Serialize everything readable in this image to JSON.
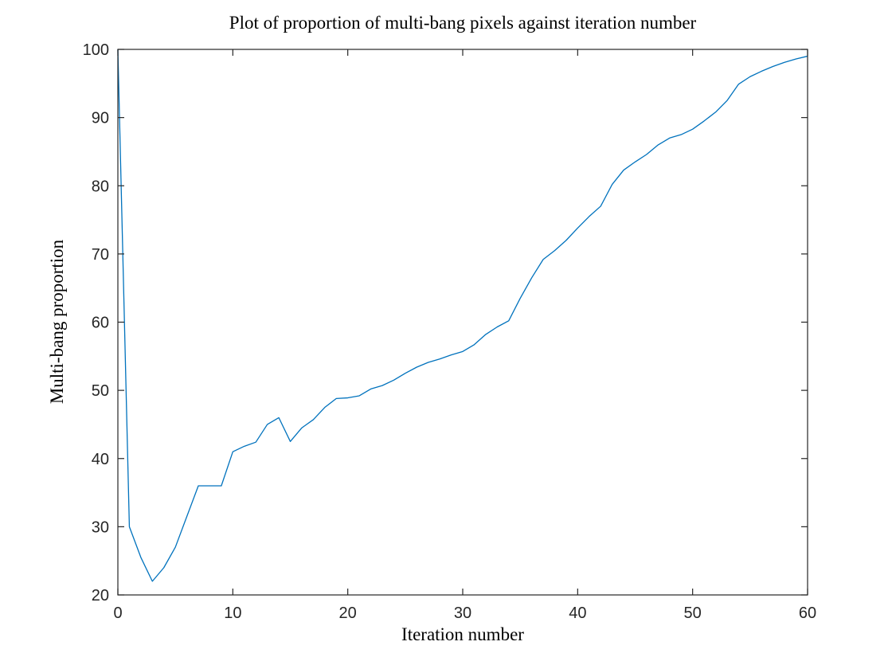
{
  "figure": {
    "background": "#ffffff"
  },
  "chart_data": {
    "type": "line",
    "title": "Plot of proportion of multi-bang pixels against iteration number",
    "xlabel": "Iteration number",
    "ylabel": "Multi-bang proportion",
    "xlim": [
      0,
      60
    ],
    "ylim": [
      20,
      100
    ],
    "xticks": [
      0,
      10,
      20,
      30,
      40,
      50,
      60
    ],
    "yticks": [
      20,
      30,
      40,
      50,
      60,
      70,
      80,
      90,
      100
    ],
    "grid": false,
    "box": true,
    "tick_direction": "in",
    "legend": "none",
    "line_color": "#0072BD",
    "axis_color": "#262626",
    "x": [
      0,
      1,
      2,
      3,
      4,
      5,
      6,
      7,
      8,
      9,
      10,
      11,
      12,
      13,
      14,
      15,
      16,
      17,
      18,
      19,
      20,
      21,
      22,
      23,
      24,
      25,
      26,
      27,
      28,
      29,
      30,
      31,
      32,
      33,
      34,
      35,
      36,
      37,
      38,
      39,
      40,
      41,
      42,
      43,
      44,
      45,
      46,
      47,
      48,
      49,
      50,
      51,
      52,
      53,
      54,
      55,
      56,
      57,
      58,
      59,
      60
    ],
    "values": [
      100,
      30,
      25.5,
      22,
      24,
      27,
      31.5,
      36,
      36,
      36,
      41,
      41.8,
      42.4,
      45,
      46,
      42.5,
      44.5,
      45.7,
      47.5,
      48.8,
      48.9,
      49.2,
      50.2,
      50.7,
      51.5,
      52.5,
      53.4,
      54.1,
      54.6,
      55.2,
      55.7,
      56.7,
      58.2,
      59.3,
      60.2,
      63.5,
      66.5,
      69.2,
      70.5,
      72,
      73.8,
      75.5,
      77,
      80.2,
      82.3,
      83.5,
      84.6,
      86,
      87,
      87.5,
      88.3,
      89.5,
      90.8,
      92.5,
      94.9,
      96,
      96.8,
      97.5,
      98.1,
      98.6,
      99
    ]
  }
}
